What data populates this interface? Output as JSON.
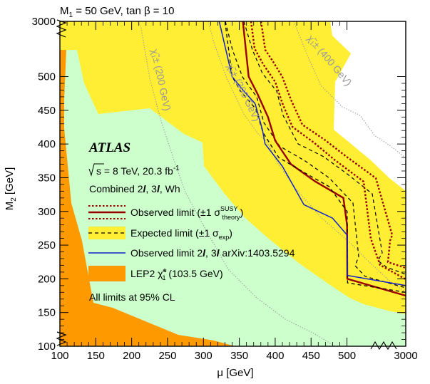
{
  "chart_data": {
    "type": "area",
    "title": "M",
    "title_sub": "1",
    "title_rest": " = 50 GeV, tan β = 10",
    "xlabel": "μ [GeV]",
    "ylabel": "M",
    "ylabel_sub": "2",
    "ylabel_rest": " [GeV]",
    "xlim": [
      100,
      3000
    ],
    "ylim": [
      100,
      3000
    ],
    "x_ticks": [
      100,
      150,
      200,
      250,
      300,
      350,
      400,
      450,
      500,
      3000
    ],
    "y_ticks": [
      100,
      150,
      200,
      250,
      300,
      350,
      400,
      450,
      500,
      3000
    ],
    "x_break_after": 500,
    "y_break_after": 500,
    "legend_position": "left, inside plot",
    "annotations": {
      "atlas": "ATLAS",
      "energy_sqrt": "s",
      "energy_rest": " = 8 TeV, 20.3 fb",
      "energy_sup": "-1",
      "combined_pre": "Combined ",
      "combined_2l": "2",
      "combined_l1": "l",
      "combined_sep": ", ",
      "combined_3l": "3",
      "combined_l2": "l",
      "combined_post": ", Wh",
      "all_limits": "All limits at 95% CL",
      "contour_200": "χ̃₁± (200 GeV)",
      "contour_300": "χ̃₁± (300 GeV)",
      "contour_400": "χ̃₁± (400 GeV)"
    },
    "legend": {
      "observed_pre": "Observed limit (±1 σ",
      "observed_sup": "SUSY",
      "observed_sub": "theory",
      "observed_post": ")",
      "expected_pre": "Expected limit (±1 σ",
      "expected_sub": "exp",
      "expected_post": ")",
      "prev_pre": "Observed limit ",
      "prev_2": "2",
      "prev_l1": "l",
      "prev_sep": ", ",
      "prev_3": "3",
      "prev_l2": "l",
      "prev_post": " arXiv:1403.5294",
      "lep2_pre": "LEP2 χ̃",
      "lep2_sup": "±",
      "lep2_sub": "1",
      "lep2_post": " (103.5 GeV)"
    },
    "colors": {
      "lep2": "#ff9900",
      "green_region": "#ccffcc",
      "expected_band": "#ffee33",
      "observed": "#990000",
      "expected": "#000000",
      "previous": "#1122cc",
      "contours": "#999999"
    },
    "series": [
      {
        "name": "Observed limit",
        "x": [
          355,
          363,
          375,
          390,
          400,
          422,
          455,
          495,
          505,
          515,
          3000
        ],
        "y": [
          3000,
          500,
          475,
          440,
          405,
          370,
          345,
          320,
          280,
          200,
          175
        ]
      },
      {
        "name": "Expected limit",
        "x": [
          330,
          340,
          352,
          373,
          383,
          405,
          440,
          475,
          508,
          518,
          513,
          526,
          3000
        ],
        "y": [
          3000,
          500,
          478,
          452,
          417,
          380,
          358,
          337,
          300,
          223,
          210,
          194,
          180
        ]
      },
      {
        "name": "Observed limit 2l, 3l arXiv:1403.5294",
        "x": [
          322,
          340,
          355,
          372,
          382,
          386,
          410,
          440,
          480,
          505,
          510,
          518,
          3000
        ],
        "y": [
          3000,
          500,
          480,
          460,
          422,
          400,
          367,
          310,
          290,
          265,
          230,
          205,
          190
        ]
      }
    ]
  }
}
